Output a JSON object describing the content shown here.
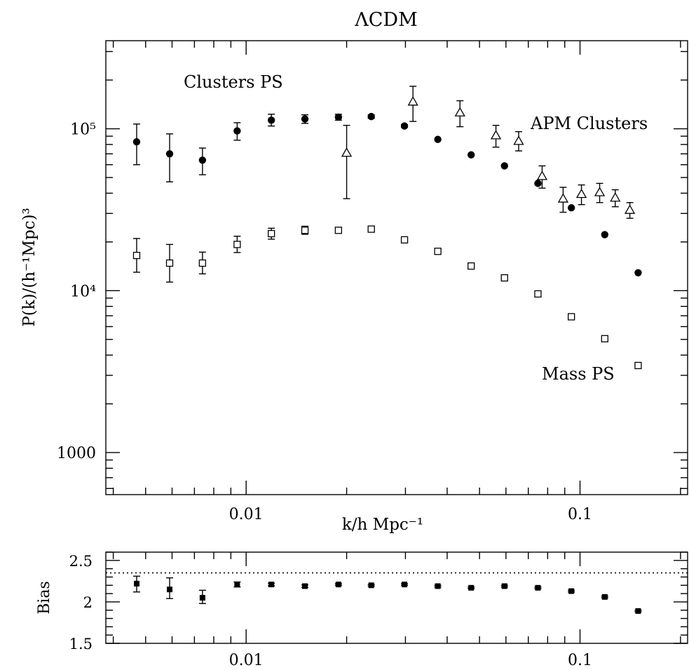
{
  "chart_data": [
    {
      "type": "scatter",
      "title": "ΛCDM",
      "xlabel": "k/h Mpc⁻¹",
      "ylabel": "P(k)/(h⁻¹Mpc)³",
      "xscale": "log",
      "yscale": "log",
      "xlim": [
        0.0038,
        0.21
      ],
      "ylim": [
        550,
        350000
      ],
      "x_ticks": [
        {
          "value": 0.01,
          "label": "0.01"
        },
        {
          "value": 0.1,
          "label": "0.1"
        }
      ],
      "y_ticks": [
        {
          "value": 1000,
          "label": "1000"
        },
        {
          "value": 10000,
          "label": "10⁴"
        },
        {
          "value": 100000,
          "label": "10⁵"
        }
      ],
      "annotations": [
        {
          "text": "Clusters PS",
          "series": "Clusters PS"
        },
        {
          "text": "APM Clusters",
          "series": "APM Clusters"
        },
        {
          "text": "Mass PS",
          "series": "Mass PS"
        }
      ],
      "series": [
        {
          "name": "Clusters PS",
          "marker": "filled-circle",
          "points": [
            {
              "x": 0.0047,
              "y": 83000,
              "lo": 60000,
              "hi": 107000
            },
            {
              "x": 0.0059,
              "y": 70000,
              "lo": 47000,
              "hi": 93000
            },
            {
              "x": 0.0074,
              "y": 64000,
              "lo": 52000,
              "hi": 76000
            },
            {
              "x": 0.0094,
              "y": 97000,
              "lo": 85000,
              "hi": 109000
            },
            {
              "x": 0.0119,
              "y": 113000,
              "lo": 104000,
              "hi": 123000
            },
            {
              "x": 0.015,
              "y": 115000,
              "lo": 108000,
              "hi": 122000
            },
            {
              "x": 0.0189,
              "y": 118000,
              "lo": 113000,
              "hi": 123000
            },
            {
              "x": 0.0237,
              "y": 119000,
              "lo": 116000,
              "hi": 122000
            },
            {
              "x": 0.0298,
              "y": 104000,
              "lo": 102000,
              "hi": 106000
            },
            {
              "x": 0.0375,
              "y": 86000
            },
            {
              "x": 0.0472,
              "y": 69000
            },
            {
              "x": 0.0594,
              "y": 59000
            },
            {
              "x": 0.0748,
              "y": 46000
            },
            {
              "x": 0.0942,
              "y": 32500
            },
            {
              "x": 0.1186,
              "y": 22200
            },
            {
              "x": 0.1493,
              "y": 12900
            }
          ]
        },
        {
          "name": "APM Clusters",
          "marker": "open-triangle",
          "points": [
            {
              "x": 0.02,
              "y": 71000,
              "lo": 37000,
              "hi": 105000
            },
            {
              "x": 0.0316,
              "y": 147000,
              "lo": 111000,
              "hi": 183000
            },
            {
              "x": 0.0437,
              "y": 126000,
              "lo": 103000,
              "hi": 149000
            },
            {
              "x": 0.056,
              "y": 91000,
              "lo": 77000,
              "hi": 105000
            },
            {
              "x": 0.0655,
              "y": 84000,
              "lo": 73000,
              "hi": 96000
            },
            {
              "x": 0.077,
              "y": 51000,
              "lo": 43000,
              "hi": 59000
            },
            {
              "x": 0.089,
              "y": 37000,
              "lo": 30500,
              "hi": 43500
            },
            {
              "x": 0.101,
              "y": 39500,
              "lo": 34000,
              "hi": 45000
            },
            {
              "x": 0.1145,
              "y": 40500,
              "lo": 35000,
              "hi": 46000
            },
            {
              "x": 0.1275,
              "y": 37500,
              "lo": 33000,
              "hi": 42000
            },
            {
              "x": 0.141,
              "y": 31500,
              "lo": 28000,
              "hi": 35000
            }
          ]
        },
        {
          "name": "Mass PS",
          "marker": "open-square",
          "points": [
            {
              "x": 0.0047,
              "y": 16500,
              "lo": 13000,
              "hi": 21000
            },
            {
              "x": 0.0059,
              "y": 14800,
              "lo": 11300,
              "hi": 19300
            },
            {
              "x": 0.0074,
              "y": 14800,
              "lo": 12700,
              "hi": 17300
            },
            {
              "x": 0.0094,
              "y": 19300,
              "lo": 17200,
              "hi": 21700
            },
            {
              "x": 0.0119,
              "y": 22500,
              "lo": 20800,
              "hi": 24300
            },
            {
              "x": 0.015,
              "y": 23600,
              "lo": 22300,
              "hi": 25000
            },
            {
              "x": 0.0189,
              "y": 23600,
              "lo": 22700,
              "hi": 24500
            },
            {
              "x": 0.0237,
              "y": 24000,
              "lo": 23300,
              "hi": 24700
            },
            {
              "x": 0.0298,
              "y": 20600,
              "lo": 20100,
              "hi": 21100
            },
            {
              "x": 0.0375,
              "y": 17500,
              "lo": 17100,
              "hi": 17900
            },
            {
              "x": 0.0472,
              "y": 14200,
              "lo": 13900,
              "hi": 14500
            },
            {
              "x": 0.0594,
              "y": 12000,
              "lo": 11800,
              "hi": 12200
            },
            {
              "x": 0.0748,
              "y": 9550,
              "lo": 9400,
              "hi": 9700
            },
            {
              "x": 0.0942,
              "y": 6900,
              "lo": 6800,
              "hi": 7000
            },
            {
              "x": 0.1186,
              "y": 5050,
              "lo": 4980,
              "hi": 5120
            },
            {
              "x": 0.1493,
              "y": 3450,
              "lo": 3400,
              "hi": 3500
            }
          ]
        }
      ]
    },
    {
      "type": "scatter",
      "ylabel": "Bias",
      "xscale": "log",
      "xlim": [
        0.0038,
        0.21
      ],
      "ylim": [
        1.5,
        2.6
      ],
      "x_ticks": [
        {
          "value": 0.01,
          "label": "0.01"
        },
        {
          "value": 0.1,
          "label": "0.1"
        }
      ],
      "y_ticks": [
        {
          "value": 1.5,
          "label": "1.5"
        },
        {
          "value": 2,
          "label": "2"
        },
        {
          "value": 2.5,
          "label": "2.5"
        }
      ],
      "reference_line": {
        "y": 2.35,
        "style": "dotted"
      },
      "series": [
        {
          "name": "Bias",
          "marker": "filled-square",
          "points": [
            {
              "x": 0.0047,
              "y": 2.22,
              "lo": 2.12,
              "hi": 2.31
            },
            {
              "x": 0.0059,
              "y": 2.15,
              "lo": 2.04,
              "hi": 2.29
            },
            {
              "x": 0.0074,
              "y": 2.05,
              "lo": 1.98,
              "hi": 2.14
            },
            {
              "x": 0.0094,
              "y": 2.21,
              "lo": 2.18,
              "hi": 2.24
            },
            {
              "x": 0.0119,
              "y": 2.21,
              "lo": 2.195,
              "hi": 2.225
            },
            {
              "x": 0.015,
              "y": 2.19,
              "lo": 2.175,
              "hi": 2.205
            },
            {
              "x": 0.0189,
              "y": 2.21,
              "lo": 2.2,
              "hi": 2.22
            },
            {
              "x": 0.0237,
              "y": 2.2,
              "lo": 2.19,
              "hi": 2.21
            },
            {
              "x": 0.0298,
              "y": 2.21,
              "lo": 2.2,
              "hi": 2.22
            },
            {
              "x": 0.0375,
              "y": 2.19,
              "lo": 2.18,
              "hi": 2.2
            },
            {
              "x": 0.0472,
              "y": 2.17,
              "lo": 2.16,
              "hi": 2.18
            },
            {
              "x": 0.0594,
              "y": 2.19,
              "lo": 2.18,
              "hi": 2.2
            },
            {
              "x": 0.0748,
              "y": 2.17,
              "lo": 2.16,
              "hi": 2.18
            },
            {
              "x": 0.0942,
              "y": 2.13,
              "lo": 2.12,
              "hi": 2.14
            },
            {
              "x": 0.1186,
              "y": 2.06,
              "lo": 2.05,
              "hi": 2.07
            },
            {
              "x": 0.1493,
              "y": 1.89,
              "lo": 1.88,
              "hi": 1.9
            }
          ]
        }
      ]
    }
  ]
}
